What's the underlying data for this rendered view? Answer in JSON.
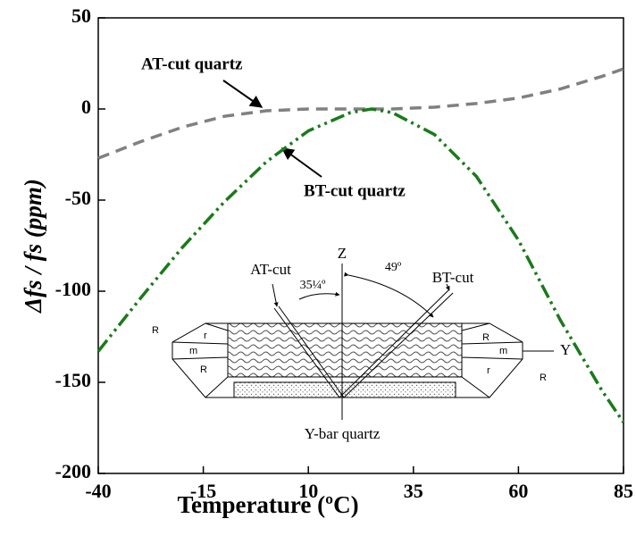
{
  "chart_data": {
    "type": "line",
    "x_label": "Temperature (ºC)",
    "y_label": "Δfs / fs (ppm)",
    "x": [
      -40,
      -30,
      -20,
      -10,
      0,
      10,
      20,
      25,
      30,
      40,
      50,
      60,
      70,
      80,
      85
    ],
    "series": [
      {
        "name": "AT-cut quartz",
        "color": "#808080",
        "values": [
          -27,
          -18,
          -10,
          -4,
          -1,
          0,
          0,
          0,
          0,
          1,
          3,
          6,
          11,
          18,
          22
        ]
      },
      {
        "name": "BT-cut quartz",
        "color": "#1a7a1a",
        "values": [
          -133,
          -104,
          -76,
          -51,
          -29,
          -12,
          -2,
          0,
          -2,
          -14,
          -37,
          -72,
          -116,
          -155,
          -172
        ]
      }
    ],
    "xlim": [
      -40,
      85
    ],
    "xticks": [
      -40,
      -15,
      10,
      35,
      60,
      85
    ],
    "ylim": [
      -200,
      50
    ],
    "yticks": [
      50,
      0,
      -50,
      -100,
      -150,
      -200
    ],
    "inset": {
      "axis_z": "Z",
      "axis_y": "Y",
      "at_cut": "AT-cut",
      "bt_cut": "BT-cut",
      "at_angle": "35¼º",
      "bt_angle": "49º",
      "caption": "Y-bar quartz",
      "faces": [
        "R",
        "r",
        "m",
        "R",
        "R",
        "r",
        "m",
        "R"
      ]
    }
  }
}
